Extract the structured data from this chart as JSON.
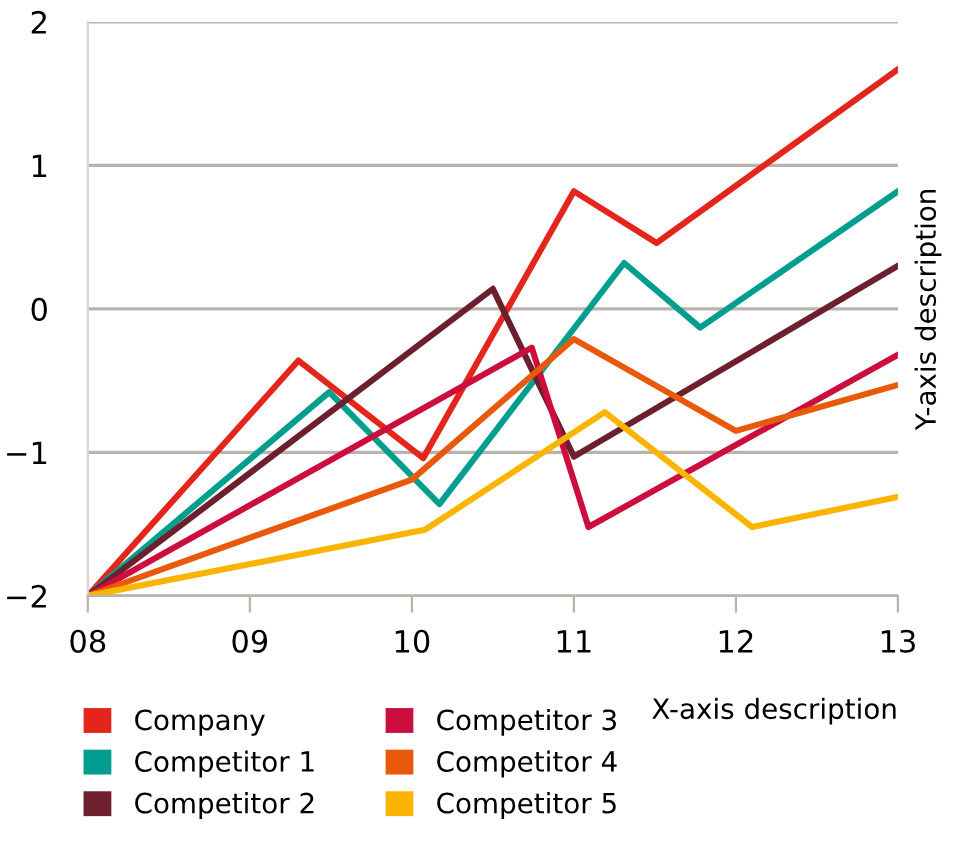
{
  "chart_data": {
    "type": "line",
    "xlabel": "X-axis description",
    "ylabel": "Y-axis description",
    "xlim": [
      8,
      13
    ],
    "xticks": [
      {
        "value": 8,
        "label": "08"
      },
      {
        "value": 9,
        "label": "09"
      },
      {
        "value": 10,
        "label": "10"
      },
      {
        "value": 11,
        "label": "11"
      },
      {
        "value": 12,
        "label": "12"
      },
      {
        "value": 13,
        "label": "13"
      }
    ],
    "ylim": [
      -2,
      2
    ],
    "yticks": [
      {
        "value": -2,
        "label": "−2"
      },
      {
        "value": -1,
        "label": "−1"
      },
      0,
      1,
      2
    ],
    "grid": "y",
    "legend": "bottom",
    "marker": "none",
    "line_style": "solid",
    "series": [
      {
        "name": "Company",
        "color": "#e3251b",
        "x": [
          8,
          9.3,
          10.07,
          11.0,
          11.51,
          13
        ],
        "values": [
          -2,
          -0.36,
          -1.04,
          0.82,
          0.46,
          1.67
        ]
      },
      {
        "name": "Competitor 1",
        "color": "#009e8e",
        "x": [
          8,
          9.49,
          10.17,
          11.31,
          11.78,
          13
        ],
        "values": [
          -2,
          -0.58,
          -1.36,
          0.32,
          -0.13,
          0.82
        ]
      },
      {
        "name": "Competitor 2",
        "color": "#6d1f2e",
        "x": [
          8,
          10.5,
          11.0,
          13
        ],
        "values": [
          -2,
          0.14,
          -1.03,
          0.3
        ]
      },
      {
        "name": "Competitor 3",
        "color": "#cc0e3f",
        "x": [
          8,
          10.74,
          11.09,
          13
        ],
        "values": [
          -2,
          -0.27,
          -1.52,
          -0.32
        ]
      },
      {
        "name": "Competitor 4",
        "color": "#e8590c",
        "x": [
          8,
          10.0,
          11.0,
          12.0,
          13
        ],
        "values": [
          -2,
          -1.19,
          -0.21,
          -0.85,
          -0.53
        ]
      },
      {
        "name": "Competitor 5",
        "color": "#fbb500",
        "x": [
          8,
          10.08,
          11.19,
          12.1,
          13
        ],
        "values": [
          -2,
          -1.54,
          -0.72,
          -1.52,
          -1.31
        ]
      }
    ]
  }
}
